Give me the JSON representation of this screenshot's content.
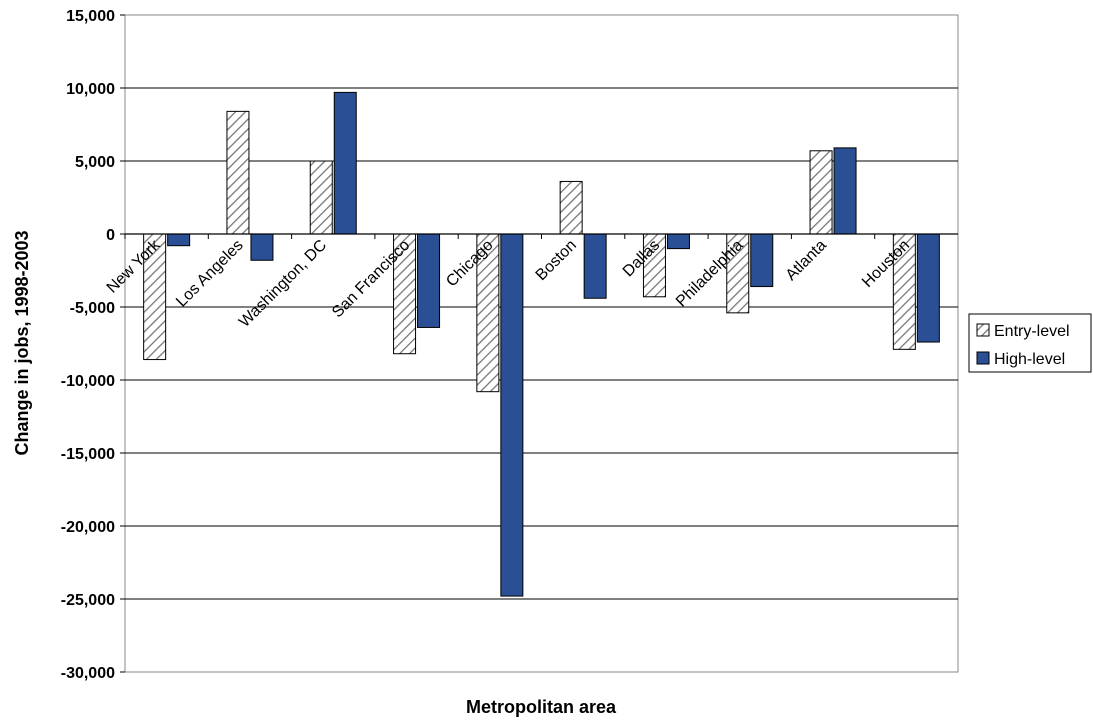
{
  "chart_data": {
    "type": "bar",
    "xlabel": "Metropolitan area",
    "ylabel": "Change in jobs, 1998-2003",
    "ylim": [
      -30000,
      15000
    ],
    "yticks": [
      15000,
      10000,
      5000,
      0,
      -5000,
      -10000,
      -15000,
      -20000,
      -25000,
      -30000
    ],
    "ytick_labels": [
      "15,000",
      "10,000",
      "5,000",
      "0",
      "-5,000",
      "-10,000",
      "-15,000",
      "-20,000",
      "-25,000",
      "-30,000"
    ],
    "grid": true,
    "legend_position": "right",
    "categories": [
      "New York",
      "Los Angeles",
      "Washington, DC",
      "San Francisco",
      "Chicago",
      "Boston",
      "Dallas",
      "Philadelphia",
      "Atlanta",
      "Houston"
    ],
    "series": [
      {
        "name": "Entry-level",
        "pattern": "hatched",
        "color": "#ffffff",
        "values": [
          -8600,
          8400,
          5000,
          -8200,
          -10800,
          3600,
          -4300,
          -5400,
          5700,
          -7900
        ]
      },
      {
        "name": "High-level",
        "pattern": "solid",
        "color": "#2a4f94",
        "values": [
          -800,
          -1800,
          9700,
          -6400,
          -24800,
          -4400,
          -1000,
          -3600,
          5900,
          -7400
        ]
      }
    ]
  }
}
